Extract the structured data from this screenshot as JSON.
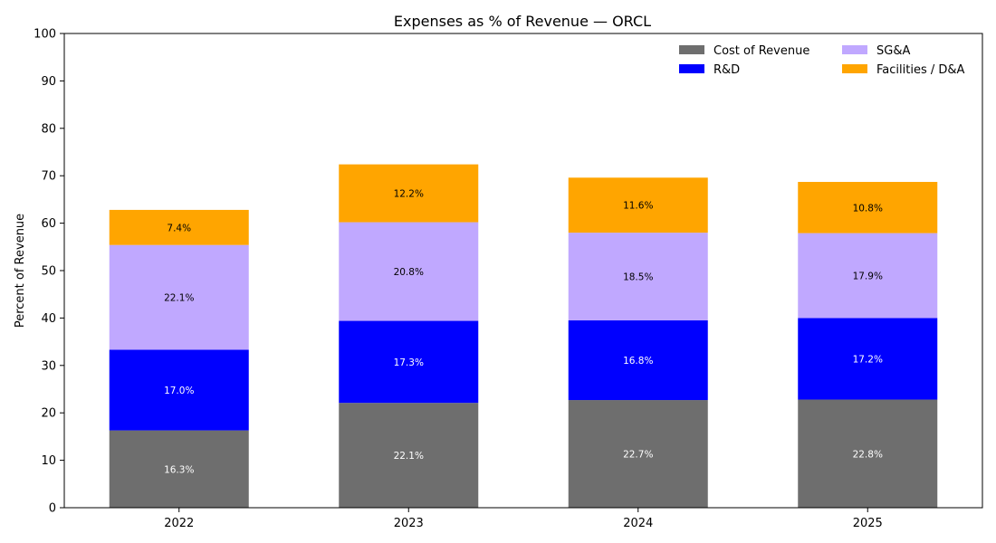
{
  "chart_data": {
    "type": "bar",
    "stacked": true,
    "title": "Expenses as % of Revenue — ORCL",
    "xlabel": "",
    "ylabel": "Percent of Revenue",
    "ylim": [
      0,
      100
    ],
    "yticks": [
      0,
      10,
      20,
      30,
      40,
      50,
      60,
      70,
      80,
      90,
      100
    ],
    "categories": [
      "2022",
      "2023",
      "2024",
      "2025"
    ],
    "series": [
      {
        "name": "Cost of Revenue",
        "color": "#6e6e6e",
        "label_color": "#ffffff",
        "values": [
          16.3,
          22.1,
          22.7,
          22.8
        ],
        "labels": [
          "16.3%",
          "22.1%",
          "22.7%",
          "22.8%"
        ]
      },
      {
        "name": "R&D",
        "color": "#0000ff",
        "label_color": "#ffffff",
        "values": [
          17.0,
          17.3,
          16.8,
          17.2
        ],
        "labels": [
          "17.0%",
          "17.3%",
          "16.8%",
          "17.2%"
        ]
      },
      {
        "name": "SG&A",
        "color": "#c0a8ff",
        "label_color": "#000000",
        "values": [
          22.1,
          20.8,
          18.5,
          17.9
        ],
        "labels": [
          "22.1%",
          "20.8%",
          "18.5%",
          "17.9%"
        ]
      },
      {
        "name": "Facilities / D&A",
        "color": "#ffa500",
        "label_color": "#000000",
        "values": [
          7.4,
          12.2,
          11.6,
          10.8
        ],
        "labels": [
          "7.4%",
          "12.2%",
          "11.6%",
          "10.8%"
        ]
      }
    ],
    "legend": {
      "position": "top-right",
      "columns": 2
    },
    "grid": false
  }
}
